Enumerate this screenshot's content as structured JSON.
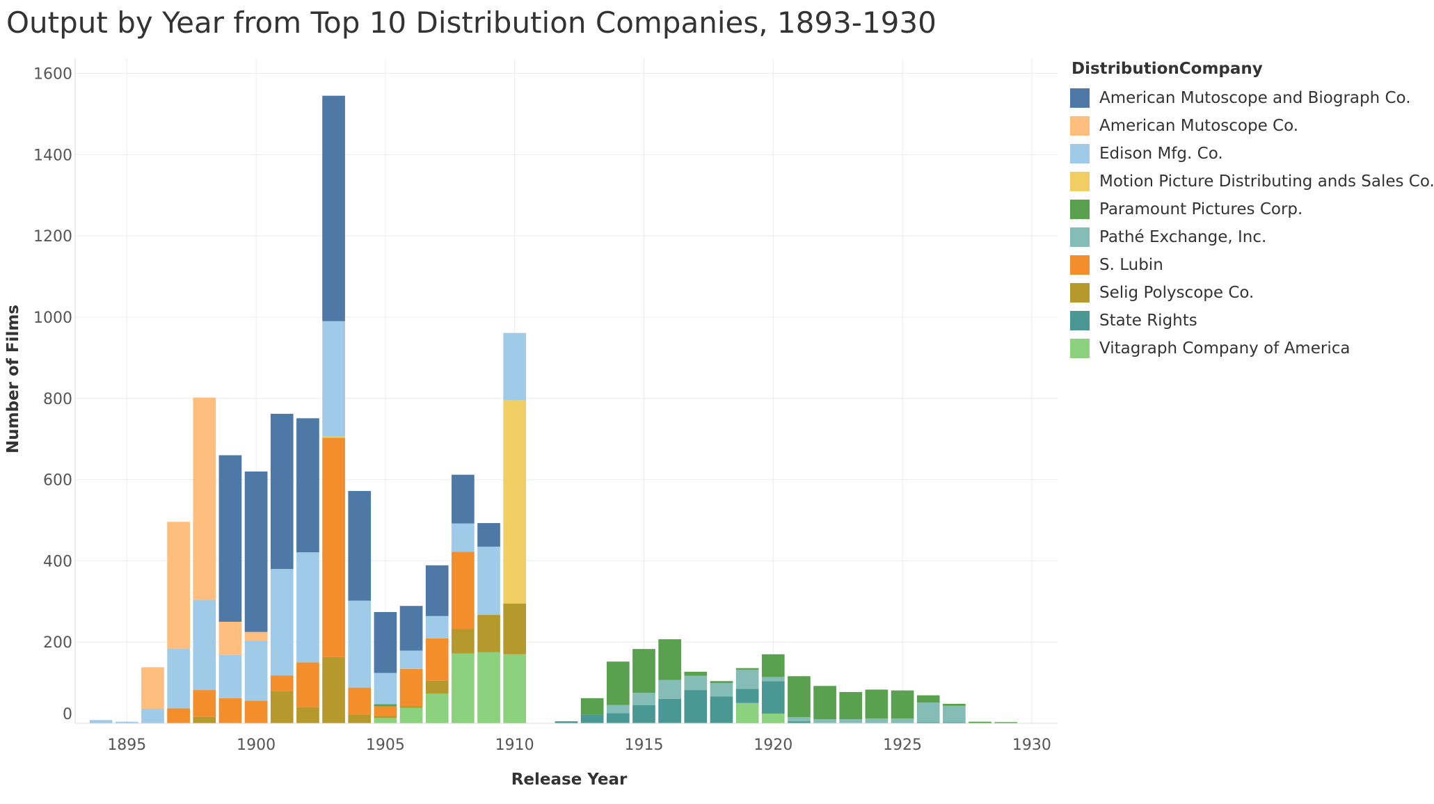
{
  "chart_data": {
    "type": "bar",
    "stacked": true,
    "title": "Output by Year from Top 10 Distribution Companies, 1893-1930",
    "xlabel": "Release Year",
    "ylabel": "Number of Films",
    "xlim": [
      1893,
      1931
    ],
    "ylim": [
      0,
      1630
    ],
    "x_ticks": [
      1895,
      1900,
      1905,
      1910,
      1915,
      1920,
      1925,
      1930
    ],
    "y_ticks": [
      0,
      200,
      400,
      600,
      800,
      1000,
      1200,
      1400,
      1600
    ],
    "grid": true,
    "legend_position": "right",
    "legend_title": "DistributionCompany",
    "series": [
      {
        "name": "American Mutoscope and Biograph Co.",
        "color": "#4e79a7",
        "values": {
          "1899": 410,
          "1900": 395,
          "1901": 382,
          "1902": 330,
          "1903": 555,
          "1904": 270,
          "1905": 150,
          "1906": 110,
          "1907": 125,
          "1908": 120,
          "1909": 58
        }
      },
      {
        "name": "American Mutoscope Co.",
        "color": "#ffbe7d",
        "values": {
          "1896": 102,
          "1897": 312,
          "1898": 498,
          "1899": 82,
          "1900": 22
        }
      },
      {
        "name": "Edison Mfg. Co.",
        "color": "#a0cbe8",
        "values": {
          "1894": 8,
          "1895": 4,
          "1896": 36,
          "1897": 147,
          "1898": 222,
          "1899": 106,
          "1900": 147,
          "1901": 262,
          "1902": 271,
          "1903": 284,
          "1904": 214,
          "1905": 77,
          "1906": 45,
          "1907": 55,
          "1908": 70,
          "1909": 168,
          "1910": 166
        }
      },
      {
        "name": "Motion Picture Distributing ands Sales Co.",
        "color": "#f1ce63",
        "values": {
          "1903": 3,
          "1910": 500
        }
      },
      {
        "name": "Paramount Pictures Corp.",
        "color": "#59a14f",
        "values": {
          "1905": 5,
          "1913": 40,
          "1914": 107,
          "1915": 108,
          "1916": 100,
          "1917": 10,
          "1918": 5,
          "1919": 4,
          "1920": 56,
          "1921": 101,
          "1922": 82,
          "1923": 67,
          "1924": 71,
          "1925": 69,
          "1926": 18,
          "1927": 5,
          "1928": 4,
          "1929": 3
        }
      },
      {
        "name": "Pathé Exchange, Inc.",
        "color": "#86bcb6",
        "values": {
          "1914": 20,
          "1915": 30,
          "1916": 47,
          "1917": 35,
          "1918": 33,
          "1919": 47,
          "1920": 10,
          "1921": 10,
          "1922": 10,
          "1923": 10,
          "1924": 12,
          "1925": 12,
          "1926": 48,
          "1927": 40
        }
      },
      {
        "name": "S. Lubin",
        "color": "#f28e2b",
        "values": {
          "1897": 37,
          "1898": 66,
          "1899": 62,
          "1900": 56,
          "1901": 38,
          "1902": 110,
          "1903": 540,
          "1904": 66,
          "1905": 24,
          "1906": 92,
          "1907": 104,
          "1908": 190
        }
      },
      {
        "name": "Selig Polyscope Co.",
        "color": "#b6992d",
        "values": {
          "1898": 16,
          "1901": 80,
          "1902": 40,
          "1903": 163,
          "1904": 22,
          "1905": 5,
          "1906": 4,
          "1907": 32,
          "1908": 60,
          "1909": 92,
          "1910": 125
        }
      },
      {
        "name": "State Rights",
        "color": "#499894",
        "values": {
          "1912": 5,
          "1913": 22,
          "1914": 25,
          "1915": 45,
          "1916": 60,
          "1917": 82,
          "1918": 66,
          "1919": 35,
          "1920": 80,
          "1921": 5,
          "1926": 3,
          "1927": 3
        }
      },
      {
        "name": "Vitagraph Company of America",
        "color": "#8cd17d",
        "values": {
          "1905": 13,
          "1906": 38,
          "1907": 73,
          "1908": 172,
          "1909": 175,
          "1910": 170,
          "1919": 50,
          "1920": 24
        }
      }
    ]
  }
}
